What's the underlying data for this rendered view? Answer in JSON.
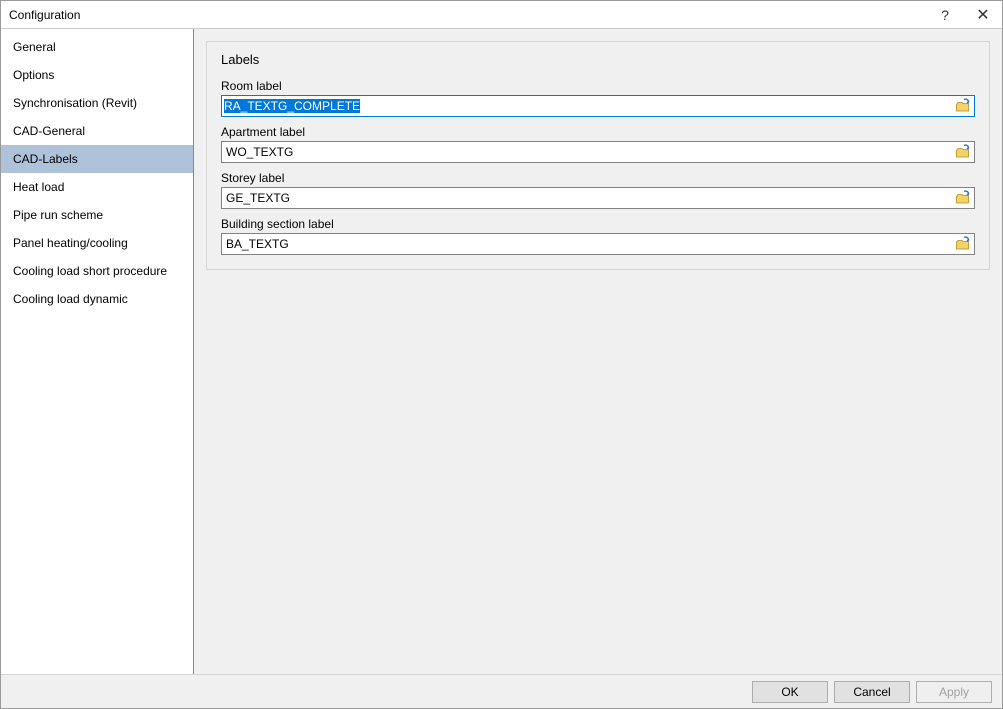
{
  "window": {
    "title": "Configuration"
  },
  "sidebar": {
    "items": [
      {
        "label": "General",
        "selected": false
      },
      {
        "label": "Options",
        "selected": false
      },
      {
        "label": "Synchronisation (Revit)",
        "selected": false
      },
      {
        "label": "CAD-General",
        "selected": false
      },
      {
        "label": "CAD-Labels",
        "selected": true
      },
      {
        "label": "Heat load",
        "selected": false
      },
      {
        "label": "Pipe run scheme",
        "selected": false
      },
      {
        "label": "Panel heating/cooling",
        "selected": false
      },
      {
        "label": "Cooling load short procedure",
        "selected": false
      },
      {
        "label": "Cooling load dynamic",
        "selected": false
      }
    ]
  },
  "content": {
    "group_title": "Labels",
    "fields": [
      {
        "label": "Room label",
        "value": "RA_TEXTG_COMPLETE",
        "focused": true
      },
      {
        "label": "Apartment label",
        "value": "WO_TEXTG",
        "focused": false
      },
      {
        "label": "Storey label",
        "value": "GE_TEXTG",
        "focused": false
      },
      {
        "label": "Building section label",
        "value": "BA_TEXTG",
        "focused": false
      }
    ]
  },
  "footer": {
    "ok": "OK",
    "cancel": "Cancel",
    "apply": "Apply",
    "apply_enabled": false
  },
  "style": {
    "selection_bg": "#0078d7",
    "selection_fg": "#ffffff",
    "sidebar_selected_bg": "#aec2d9",
    "panel_bg": "#f0f0f0",
    "border_color": "#828282",
    "focus_border": "#0078d7",
    "button_bg": "#e1e1e1",
    "button_border": "#adadad",
    "disabled_text": "#a0a0a0"
  },
  "icons": {
    "browse": {
      "folder_fill": "#f3d16b",
      "folder_stroke": "#b38b1d",
      "arrow_color": "#2a6fca"
    }
  }
}
